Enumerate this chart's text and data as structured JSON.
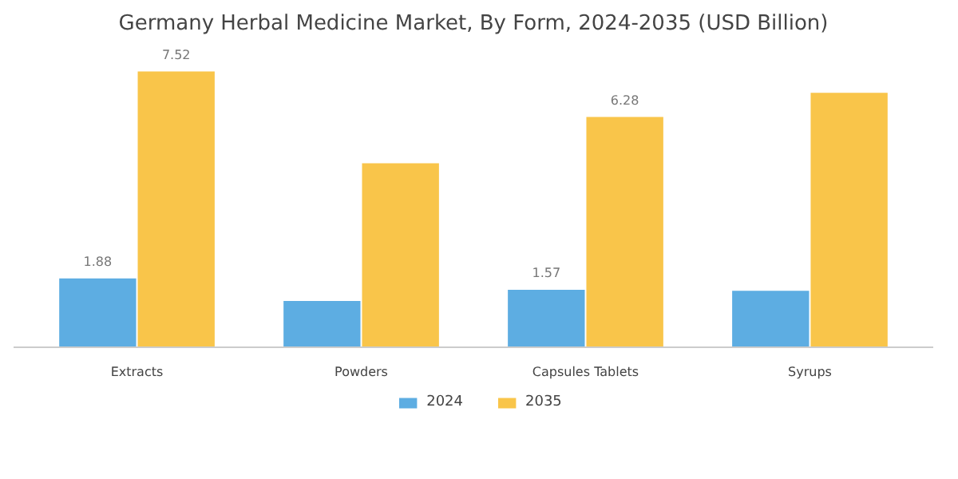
{
  "chart_data": {
    "type": "bar",
    "title": "Germany Herbal Medicine Market, By Form, 2024-2035 (USD Billion)",
    "categories": [
      "Extracts",
      "Powders",
      "Capsules Tablets",
      "Syrups"
    ],
    "series": [
      {
        "name": "2024",
        "color": "#5dade2",
        "values": [
          1.88,
          1.26,
          1.57,
          1.54
        ],
        "value_labels": [
          "1.88",
          null,
          "1.57",
          null
        ]
      },
      {
        "name": "2035",
        "color": "#f9c54a",
        "values": [
          7.52,
          5.02,
          6.28,
          6.94
        ],
        "value_labels": [
          "7.52",
          null,
          "6.28",
          null
        ]
      }
    ],
    "legend": "bottom",
    "grid": false
  }
}
